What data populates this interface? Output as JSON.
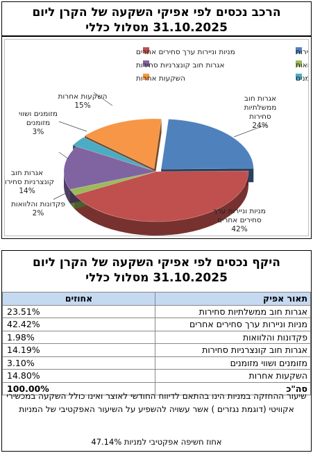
{
  "title": {
    "line1": "הרכב נכסים לפי אפיקי השקעה של הקרן ליום",
    "line2": "31.10.2025 מסלול כללי"
  },
  "colors": {
    "gov_bonds": "#4f81bd",
    "corp_bonds_tradable": "#c0504d",
    "deposits_loans": "#9bbb59",
    "corp_bonds_nontradable": "#8064a2",
    "cash": "#4bacc6",
    "other": "#f79646",
    "header_fill": "#c5d9f1"
  },
  "chart_data": {
    "type": "pie",
    "title": "",
    "legend_position": "top",
    "slices": [
      {
        "key": "gov_bonds",
        "legend": "אגרות חוב ממשלתיות סחירות",
        "label_lines": [
          "אגרות חוב",
          "ממשלתיות",
          "סחירות"
        ],
        "pct_label": "24%",
        "value": 23.51
      },
      {
        "key": "corp_bonds_tradable",
        "legend": "מניות וניירות ערך סחירים אחרים",
        "label_lines": [
          "מניות וניירות ערך",
          "סחירים אחרים"
        ],
        "pct_label": "42%",
        "value": 42.42
      },
      {
        "key": "deposits_loans",
        "legend": "פקדונות והלוואות",
        "label_lines": [
          "פקדונות והלוואות"
        ],
        "pct_label": "2%",
        "value": 1.98
      },
      {
        "key": "corp_bonds_nontradable",
        "legend": "אגרות חוב קונצרניות סחירות",
        "label_lines": [
          "אגרות חוב",
          "קונצרניות סחירות"
        ],
        "pct_label": "14%",
        "value": 14.19
      },
      {
        "key": "cash",
        "legend": "מזומנים ושווי מזומנים",
        "label_lines": [
          "מזומנים ושווי",
          "מזומנים"
        ],
        "pct_label": "3%",
        "value": 3.1
      },
      {
        "key": "other",
        "legend": "השקעות אחרות",
        "label_lines": [
          "השקעות אחרות"
        ],
        "pct_label": "15%",
        "value": 14.8
      }
    ]
  },
  "table": {
    "title_line1": "היקף נכסים לפי אפיקי השקעה של הקרן ליום",
    "title_line2": "31.10.2025 מסלול כללי",
    "header_desc": "תאור אפיק",
    "header_pct": "אחוזים",
    "rows": [
      {
        "desc": "אגרות חוב ממשלתיות סחירות",
        "pct": "23.51%"
      },
      {
        "desc": "מניות וניירות ערך סחירים אחרים",
        "pct": "42.42%"
      },
      {
        "desc": "פקדונות והלוואות",
        "pct": "1.98%"
      },
      {
        "desc": "אגרות חוב קונצרניות סחירות",
        "pct": "14.19%"
      },
      {
        "desc": "מזומנים ושווי מזומנים",
        "pct": "3.10%"
      },
      {
        "desc": "השקעות אחרות",
        "pct": "14.80%"
      }
    ],
    "total_desc": "סה\"כ",
    "total_pct": "100.00%"
  },
  "note": "שיעור ההחזקה במניות הינו בהתאם לדיווח החודשי לאוצר ואינו כולל השקעה במכשירי אקוויטי (דוגמת נגזרים ) אשר עשויה להשפיע על השיעור האפקטיבי של המניות",
  "exposure": {
    "label": "אחוז חשיפה אפקטיבי למניות",
    "value": "47.14%"
  }
}
